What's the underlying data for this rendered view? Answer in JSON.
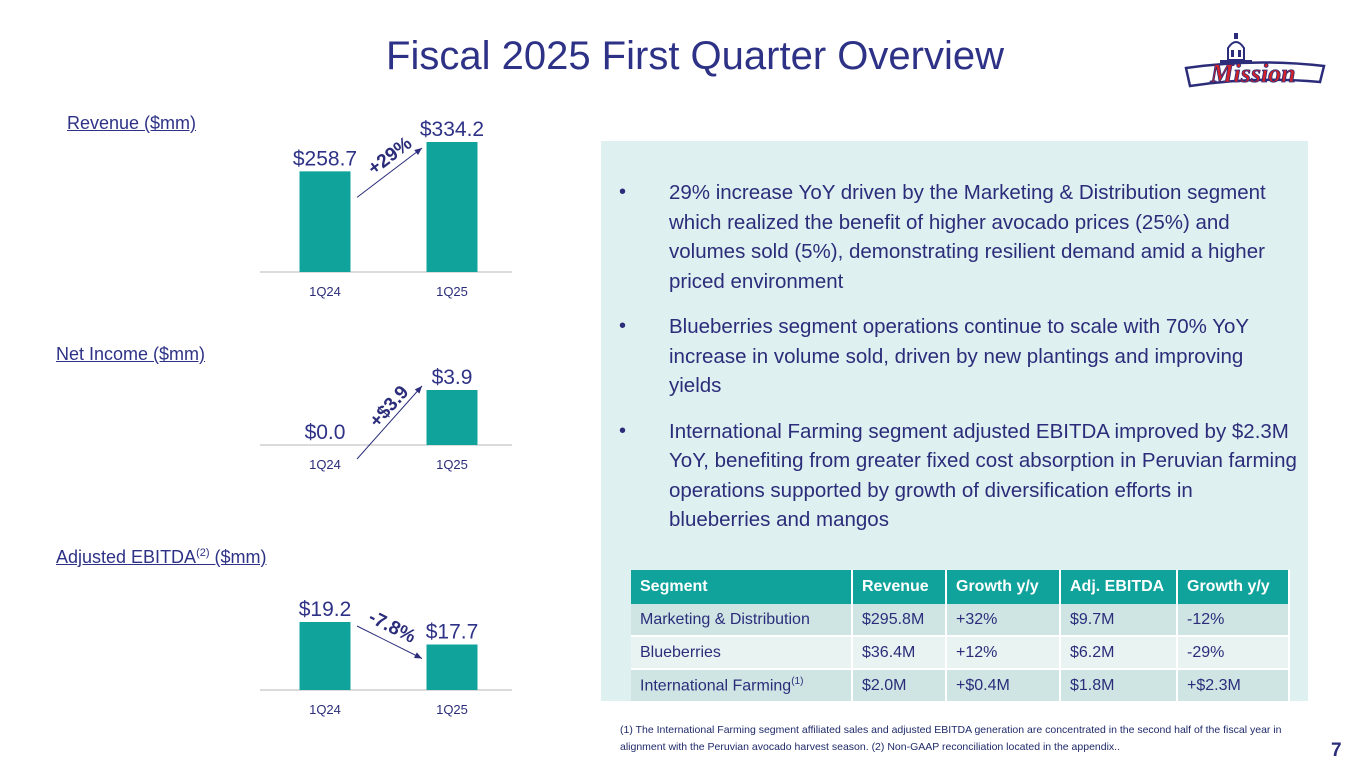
{
  "title": "Fiscal 2025 First Quarter Overview",
  "logo": {
    "text": "Mission"
  },
  "colors": {
    "bar": "#0fa39c",
    "text": "#2e3286",
    "panel": "#def0f0",
    "table_header": "#0fa39c"
  },
  "chart_data": [
    {
      "type": "bar",
      "title": "Revenue ($mm)",
      "categories": [
        "1Q24",
        "1Q25"
      ],
      "values": [
        258.7,
        334.2
      ],
      "data_labels": [
        "$258.7",
        "$334.2"
      ],
      "ylim": [
        0,
        334.2
      ],
      "annotation": "+29%",
      "grid": false
    },
    {
      "type": "bar",
      "title": "Net Income ($mm)",
      "categories": [
        "1Q24",
        "1Q25"
      ],
      "values": [
        0.0,
        3.9
      ],
      "data_labels": [
        "$0.0",
        "$3.9"
      ],
      "ylim": [
        0,
        3.9
      ],
      "annotation": "+$3.9",
      "grid": false
    },
    {
      "type": "bar",
      "title": "Adjusted EBITDA",
      "title_sup": "(2)",
      "title_suffix": " ($mm)",
      "categories": [
        "1Q24",
        "1Q25"
      ],
      "values": [
        19.2,
        17.7
      ],
      "data_labels": [
        "$19.2",
        "$17.7"
      ],
      "ylim": [
        17.0,
        19.2
      ],
      "annotation": "-7.8%",
      "grid": false
    }
  ],
  "bullets": [
    "29% increase YoY driven by the Marketing & Distribution segment which realized the benefit of higher avocado prices (25%) and volumes sold (5%), demonstrating resilient demand amid a higher priced environment",
    "Blueberries segment operations continue to scale with 70% YoY increase in volume sold, driven by new plantings and improving yields",
    "International Farming segment adjusted EBITDA improved by $2.3M YoY, benefiting from greater fixed cost absorption in Peruvian farming operations supported by growth of diversification efforts in blueberries and mangos"
  ],
  "table": {
    "headers": [
      "Segment",
      "Revenue",
      "Growth y/y",
      "Adj. EBITDA",
      "Growth y/y"
    ],
    "rows": [
      [
        "Marketing & Distribution",
        "$295.8M",
        "+32%",
        "$9.7M",
        "-12%"
      ],
      [
        "Blueberries",
        "$36.4M",
        "+12%",
        "$6.2M",
        "-29%"
      ],
      [
        "International Farming",
        "$2.0M",
        "+$0.4M",
        "$1.8M",
        "+$2.3M"
      ]
    ],
    "intl_sup": "(1)"
  },
  "footnote": "(1) The International Farming segment affiliated sales and adjusted EBITDA generation are concentrated in the second half of the fiscal year in alignment with the Peruvian avocado harvest season. (2) Non-GAAP reconciliation located in the appendix..",
  "page_number": "7"
}
